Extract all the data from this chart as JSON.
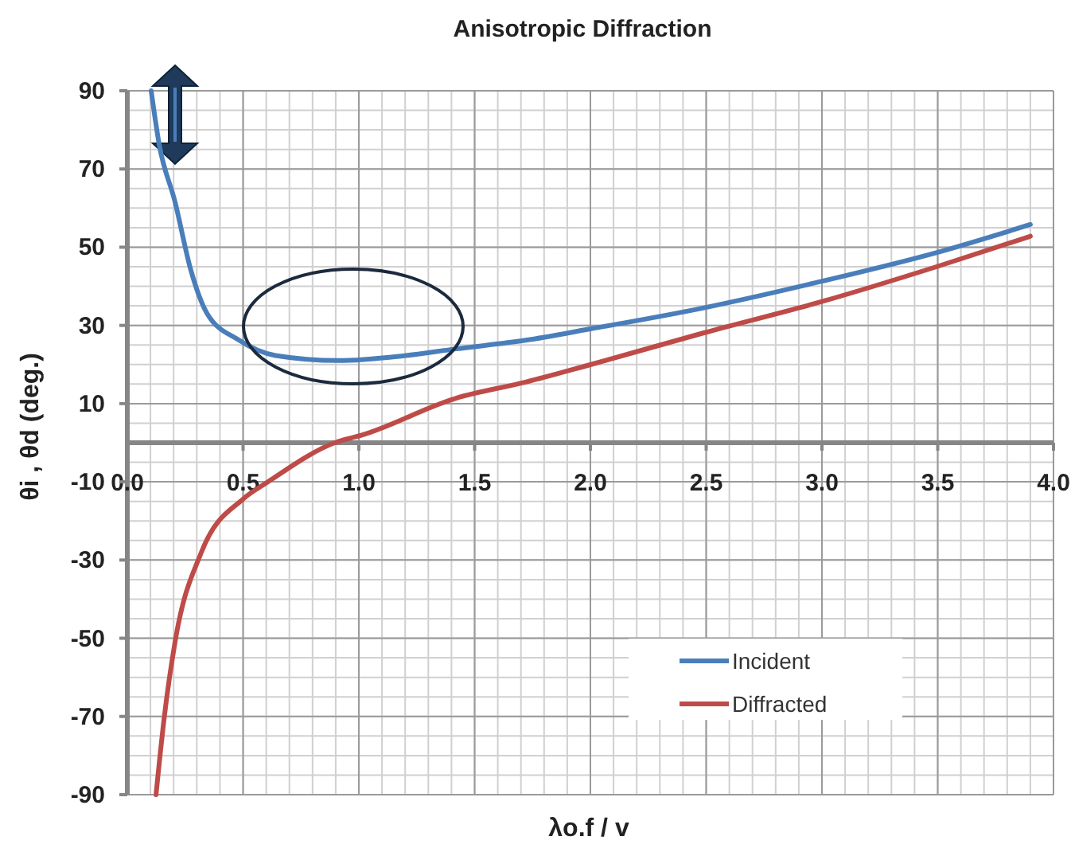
{
  "chart_data": {
    "type": "line",
    "title": "Anisotropic Diffraction",
    "xlabel": "λo.f / v",
    "ylabel": "θi , θd  (deg.)",
    "xlim": [
      0,
      4
    ],
    "ylim": [
      -90,
      90
    ],
    "xticks": [
      {
        "value": 0,
        "label": "0.0"
      },
      {
        "value": 0.5,
        "label": "0.5"
      },
      {
        "value": 1,
        "label": "1.0"
      },
      {
        "value": 1.5,
        "label": "1.5"
      },
      {
        "value": 2,
        "label": "2.0"
      },
      {
        "value": 2.5,
        "label": "2.5"
      },
      {
        "value": 3,
        "label": "3.0"
      },
      {
        "value": 3.5,
        "label": "3.5"
      },
      {
        "value": 4,
        "label": "4.0"
      }
    ],
    "yticks": [
      -90,
      -70,
      -50,
      -30,
      -10,
      10,
      30,
      50,
      70,
      90
    ],
    "grid": true,
    "legend": "bottom right",
    "marker": "none",
    "line_style": "solid",
    "series": [
      {
        "name": "Incident",
        "color": "#4a7ebb",
        "x": [
          0.103,
          0.137,
          0.206,
          0.275,
          0.344,
          0.48,
          0.64,
          0.91,
          1.19,
          1.42,
          1.72,
          1.99,
          2.49,
          3.0,
          3.5,
          3.9
        ],
        "values": [
          90,
          76.5,
          61.6,
          44,
          33.1,
          26.3,
          22.3,
          21,
          22.2,
          24,
          26.2,
          29,
          34.5,
          41.3,
          48.7,
          55.8
        ]
      },
      {
        "name": "Diffracted",
        "color": "#be4b48",
        "x": [
          0.124,
          0.16,
          0.206,
          0.32,
          0.5,
          0.6,
          0.91,
          1.01,
          1.42,
          1.72,
          1.99,
          2.49,
          3.0,
          3.5,
          3.9
        ],
        "values": [
          -90,
          -70,
          -51,
          -28,
          -14.4,
          -10.3,
          0.3,
          1.9,
          11.4,
          15.5,
          19.8,
          28.1,
          36.1,
          45.1,
          52.8
        ]
      }
    ]
  }
}
